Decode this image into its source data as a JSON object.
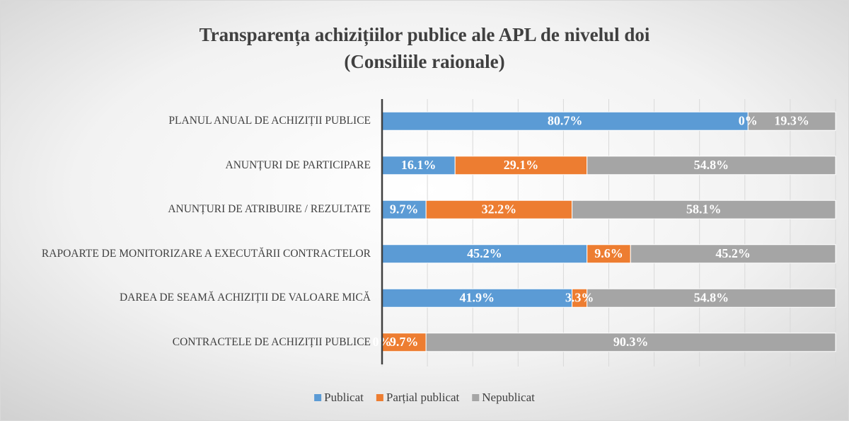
{
  "chart_data": {
    "type": "bar_stacked_horizontal",
    "title": "Transparența achizițiilor publice ale APL de nivelul doi",
    "subtitle": "(Consiliile raionale)",
    "categories": [
      "PLANUL ANUAL DE ACHIZIȚII PUBLICE",
      "ANUNȚURI DE PARTICIPARE",
      "ANUNȚURI DE ATRIBUIRE / REZULTATE",
      "RAPOARTE DE MONITORIZARE A EXECUTĂRII CONTRACTELOR",
      "DAREA DE SEAMĂ ACHIZIȚII DE VALOARE MICĂ",
      "CONTRACTELE DE ACHIZIȚII PUBLICE"
    ],
    "series": [
      {
        "name": "Publicat",
        "color": "#5b9bd5",
        "values": [
          80.7,
          16.1,
          9.7,
          45.2,
          41.9,
          0
        ],
        "value_labels": [
          "80.7%",
          "16.1%",
          "9.7%",
          "45.2%",
          "41.9%",
          "0%"
        ]
      },
      {
        "name": "Parțial publicat",
        "color": "#ed7d31",
        "values": [
          0,
          29.1,
          32.2,
          9.6,
          3.3,
          9.7
        ],
        "value_labels": [
          "0%",
          "29.1%",
          "32.2%",
          "9.6%",
          "3.3%",
          "9.7%"
        ]
      },
      {
        "name": "Nepublicat",
        "color": "#a5a5a5",
        "values": [
          19.3,
          54.8,
          58.1,
          45.2,
          54.8,
          90.3
        ],
        "value_labels": [
          "19.3%",
          "54.8%",
          "58.1%",
          "45.2%",
          "54.8%",
          "90.3%"
        ]
      }
    ],
    "xlim": [
      0,
      100
    ],
    "xticks": [
      0,
      10,
      20,
      30,
      40,
      50,
      60,
      70,
      80,
      90,
      100
    ],
    "grid": true,
    "legend": "bottom"
  }
}
